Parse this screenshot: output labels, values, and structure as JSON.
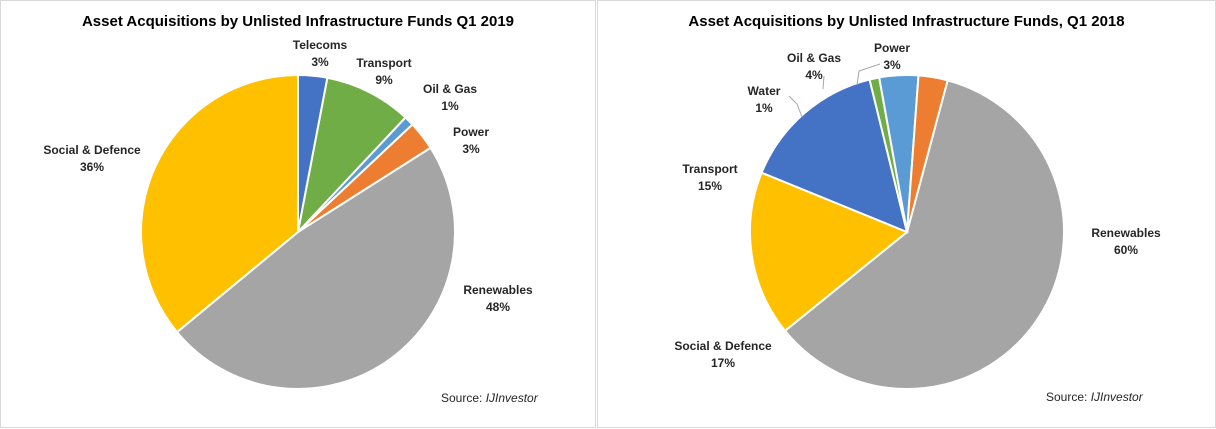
{
  "chart_data": [
    {
      "type": "pie",
      "title": "Asset Acquisitions by Unlisted Infrastructure Funds Q1 2019",
      "source_label": "Source: ",
      "source_name": "IJInvestor",
      "slices": [
        {
          "label": "Telecoms",
          "value": 3,
          "display": "3%",
          "color": "#4472c4"
        },
        {
          "label": "Transport",
          "value": 9,
          "display": "9%",
          "color": "#70ad47"
        },
        {
          "label": "Oil & Gas",
          "value": 1,
          "display": "1%",
          "color": "#5b9bd5"
        },
        {
          "label": "Power",
          "value": 3,
          "display": "3%",
          "color": "#ed7d31"
        },
        {
          "label": "Renewables",
          "value": 48,
          "display": "48%",
          "color": "#a5a5a5"
        },
        {
          "label": "Social & Defence",
          "value": 36,
          "display": "36%",
          "color": "#ffc000"
        }
      ]
    },
    {
      "type": "pie",
      "title": "Asset Acquisitions by Unlisted Infrastructure Funds, Q1 2018",
      "source_label": "Source: ",
      "source_name": "IJInvestor",
      "slices": [
        {
          "label": "Renewables",
          "value": 60,
          "display": "60%",
          "color": "#a5a5a5"
        },
        {
          "label": "Social & Defence",
          "value": 17,
          "display": "17%",
          "color": "#ffc000"
        },
        {
          "label": "Transport",
          "value": 15,
          "display": "15%",
          "color": "#4472c4"
        },
        {
          "label": "Water",
          "value": 1,
          "display": "1%",
          "color": "#70ad47"
        },
        {
          "label": "Oil & Gas",
          "value": 4,
          "display": "4%",
          "color": "#5b9bd5"
        },
        {
          "label": "Power",
          "value": 3,
          "display": "3%",
          "color": "#ed7d31"
        }
      ]
    }
  ]
}
